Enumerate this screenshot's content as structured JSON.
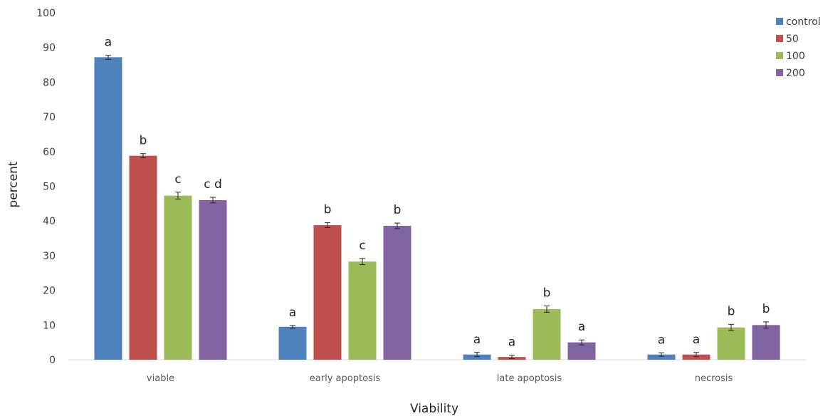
{
  "chart_data": {
    "type": "bar",
    "title": "",
    "xlabel": "Viability",
    "ylabel": "percent",
    "ylim": [
      0,
      100
    ],
    "yticks": [
      0,
      10,
      20,
      30,
      40,
      50,
      60,
      70,
      80,
      90,
      100
    ],
    "categories": [
      "viable",
      "early apoptosis",
      "late apoptosis",
      "necrosis"
    ],
    "grid": false,
    "legend_position": "top-right",
    "series": [
      {
        "name": "control",
        "color": "#4f81bd",
        "values": [
          87.2,
          9.5,
          1.5,
          1.5
        ],
        "errors": [
          0.6,
          0.4,
          0.6,
          0.5
        ],
        "labels": [
          "a",
          "a",
          "a",
          "a"
        ]
      },
      {
        "name": "50",
        "color": "#c0504d",
        "values": [
          58.8,
          38.8,
          0.8,
          1.5
        ],
        "errors": [
          0.6,
          0.7,
          0.5,
          0.6
        ],
        "labels": [
          "b",
          "b",
          "a",
          "a"
        ]
      },
      {
        "name": "100",
        "color": "#9bbb59",
        "values": [
          47.3,
          28.3,
          14.6,
          9.3
        ],
        "errors": [
          1.0,
          0.9,
          0.9,
          0.9
        ],
        "labels": [
          "c",
          "c",
          "b",
          "b"
        ]
      },
      {
        "name": "200",
        "color": "#8064a2",
        "values": [
          46.0,
          38.6,
          5.0,
          10.0
        ],
        "errors": [
          0.8,
          0.8,
          0.7,
          0.9
        ],
        "labels": [
          "c d",
          "b",
          "a",
          "b"
        ]
      }
    ]
  }
}
